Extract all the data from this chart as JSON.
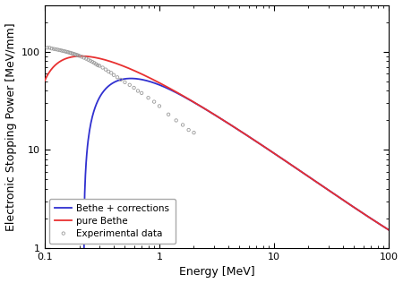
{
  "xlabel": "Energy [MeV]",
  "ylabel": "Electronic Stopping Power [MeV/mm]",
  "xlim": [
    0.1,
    100
  ],
  "ylim": [
    1,
    300
  ],
  "legend_entries": [
    "pure Bethe",
    "Bethe + corrections",
    "Experimental data"
  ],
  "bethe_color": "#e83030",
  "corrected_color": "#3030d0",
  "exp_color": "#999999",
  "background": "#ffffff",
  "figsize": [
    4.5,
    3.16
  ],
  "dpi": 100,
  "exp_E": [
    0.105,
    0.11,
    0.115,
    0.12,
    0.125,
    0.13,
    0.135,
    0.14,
    0.145,
    0.15,
    0.155,
    0.16,
    0.165,
    0.17,
    0.175,
    0.18,
    0.185,
    0.19,
    0.195,
    0.2,
    0.21,
    0.22,
    0.23,
    0.24,
    0.25,
    0.26,
    0.27,
    0.28,
    0.29,
    0.3,
    0.32,
    0.34,
    0.36,
    0.38,
    0.4,
    0.43,
    0.46,
    0.5,
    0.55,
    0.6,
    0.65,
    0.7,
    0.8,
    0.9,
    1.0,
    1.2,
    1.4,
    1.6,
    1.8,
    2.0
  ],
  "exp_S": [
    110,
    110,
    108,
    107,
    106,
    105,
    104,
    103,
    102,
    101,
    100,
    99,
    98,
    97,
    96,
    95,
    94,
    93,
    92,
    91,
    89,
    87,
    85,
    83,
    81,
    79,
    77,
    75,
    73,
    72,
    69,
    66,
    63,
    61,
    58,
    55,
    52,
    49,
    46,
    43,
    40,
    38,
    34,
    31,
    28,
    23,
    20,
    18,
    16,
    15
  ]
}
